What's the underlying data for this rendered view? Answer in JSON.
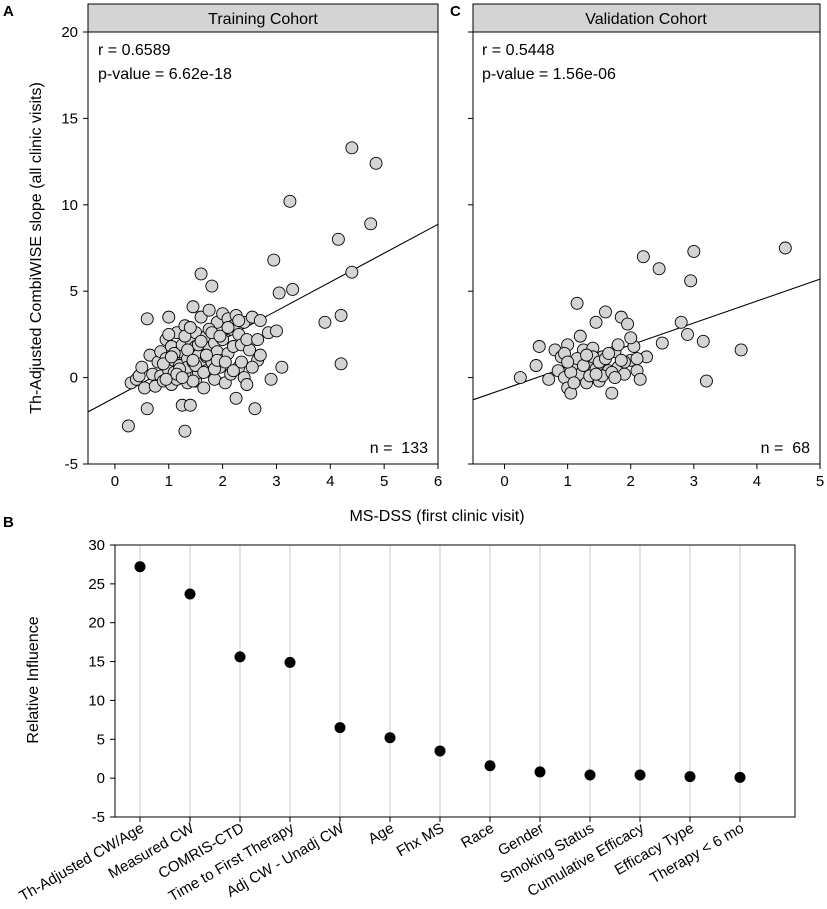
{
  "figure": {
    "panel_labels": {
      "a": "A",
      "c": "C",
      "b": "B"
    }
  },
  "chart_data": [
    {
      "id": "A",
      "type": "scatter",
      "title": "Training Cohort",
      "xlabel": "MS-DSS (first clinic visit)",
      "ylabel": "Th-Adjusted CombiWISE slope (all clinic visits)",
      "xlim": [
        -0.5,
        6
      ],
      "ylim": [
        -5,
        20
      ],
      "xticks": [
        0,
        1,
        2,
        3,
        4,
        5,
        6
      ],
      "yticks": [
        -5,
        0,
        5,
        10,
        15,
        20
      ],
      "stats": {
        "r": "r = 0.6589",
        "p": "p-value = 6.62e-18",
        "n": "n =  133"
      },
      "fit": {
        "intercept": -1.15,
        "slope": 1.67
      },
      "points": [
        [
          0.25,
          -2.8
        ],
        [
          0.3,
          -0.3
        ],
        [
          0.4,
          -0.1
        ],
        [
          0.45,
          0.1
        ],
        [
          0.5,
          0.6
        ],
        [
          0.55,
          -0.6
        ],
        [
          0.6,
          3.4
        ],
        [
          0.6,
          -1.8
        ],
        [
          0.65,
          1.3
        ],
        [
          0.7,
          0.2
        ],
        [
          0.75,
          -0.5
        ],
        [
          0.8,
          0.9
        ],
        [
          0.85,
          1.5
        ],
        [
          0.85,
          0.1
        ],
        [
          0.9,
          -0.2
        ],
        [
          0.95,
          1.1
        ],
        [
          0.95,
          2.2
        ],
        [
          1.0,
          0.4
        ],
        [
          1.0,
          3.5
        ],
        [
          1.05,
          1.8
        ],
        [
          1.05,
          -0.4
        ],
        [
          1.1,
          1.0
        ],
        [
          1.1,
          0.3
        ],
        [
          1.15,
          2.6
        ],
        [
          1.15,
          -0.1
        ],
        [
          1.2,
          1.5
        ],
        [
          1.2,
          0.7
        ],
        [
          1.25,
          -1.6
        ],
        [
          1.25,
          1.9
        ],
        [
          1.3,
          0.2
        ],
        [
          1.3,
          3.0
        ],
        [
          1.3,
          -3.1
        ],
        [
          1.35,
          1.1
        ],
        [
          1.35,
          -0.3
        ],
        [
          1.35,
          0.6
        ],
        [
          1.4,
          2.2
        ],
        [
          1.4,
          -1.6
        ],
        [
          1.4,
          1.6
        ],
        [
          1.45,
          4.1
        ],
        [
          1.45,
          0.9
        ],
        [
          1.5,
          1.8
        ],
        [
          1.5,
          -0.2
        ],
        [
          1.5,
          2.6
        ],
        [
          1.55,
          0.3
        ],
        [
          1.55,
          1.3
        ],
        [
          1.6,
          6.0
        ],
        [
          1.6,
          3.5
        ],
        [
          1.6,
          0.8
        ],
        [
          1.65,
          1.9
        ],
        [
          1.65,
          -0.6
        ],
        [
          1.7,
          2.4
        ],
        [
          1.7,
          1.2
        ],
        [
          1.7,
          0.4
        ],
        [
          1.75,
          3.9
        ],
        [
          1.75,
          1.7
        ],
        [
          1.8,
          5.3
        ],
        [
          1.8,
          0.9
        ],
        [
          1.85,
          2.0
        ],
        [
          1.85,
          -0.1
        ],
        [
          1.9,
          3.2
        ],
        [
          1.9,
          1.5
        ],
        [
          1.95,
          0.6
        ],
        [
          2.0,
          3.7
        ],
        [
          2.0,
          2.2
        ],
        [
          2.0,
          1.0
        ],
        [
          2.05,
          -0.3
        ],
        [
          2.1,
          3.4
        ],
        [
          2.1,
          1.4
        ],
        [
          2.15,
          2.8
        ],
        [
          2.15,
          0.2
        ],
        [
          2.2,
          3.0
        ],
        [
          2.2,
          1.8
        ],
        [
          2.25,
          -1.2
        ],
        [
          2.25,
          3.6
        ],
        [
          2.3,
          0.6
        ],
        [
          2.3,
          2.5
        ],
        [
          2.35,
          1.9
        ],
        [
          2.4,
          3.2
        ],
        [
          2.4,
          0.0
        ],
        [
          2.45,
          -0.4
        ],
        [
          2.5,
          1.6
        ],
        [
          2.55,
          3.5
        ],
        [
          2.6,
          -1.8
        ],
        [
          2.65,
          1.0
        ],
        [
          2.7,
          3.3
        ],
        [
          2.85,
          2.6
        ],
        [
          2.9,
          -0.1
        ],
        [
          2.95,
          6.8
        ],
        [
          3.0,
          2.7
        ],
        [
          3.05,
          4.9
        ],
        [
          3.1,
          0.6
        ],
        [
          3.25,
          10.2
        ],
        [
          3.3,
          5.1
        ],
        [
          3.9,
          3.2
        ],
        [
          4.15,
          8.0
        ],
        [
          4.2,
          3.6
        ],
        [
          4.2,
          0.8
        ],
        [
          4.4,
          13.3
        ],
        [
          4.4,
          6.1
        ],
        [
          4.75,
          8.9
        ],
        [
          4.85,
          12.4
        ],
        [
          1.0,
          2.5
        ],
        [
          1.1,
          1.4
        ],
        [
          1.2,
          0.5
        ],
        [
          1.3,
          2.4
        ],
        [
          1.4,
          2.9
        ],
        [
          1.45,
          -0.2
        ],
        [
          1.5,
          0.7
        ],
        [
          1.55,
          1.9
        ],
        [
          1.6,
          2.1
        ],
        [
          1.65,
          0.3
        ],
        [
          1.7,
          1.3
        ],
        [
          1.75,
          2.8
        ],
        [
          1.8,
          2.6
        ],
        [
          1.85,
          0.5
        ],
        [
          1.9,
          1.0
        ],
        [
          1.95,
          2.4
        ],
        [
          2.05,
          0.9
        ],
        [
          2.1,
          2.9
        ],
        [
          2.2,
          0.4
        ],
        [
          2.3,
          3.3
        ],
        [
          2.35,
          0.9
        ],
        [
          2.45,
          2.2
        ],
        [
          2.55,
          0.6
        ],
        [
          2.65,
          2.2
        ],
        [
          2.7,
          1.3
        ],
        [
          0.9,
          0.8
        ],
        [
          0.95,
          -0.1
        ],
        [
          1.05,
          1.2
        ],
        [
          1.15,
          0.2
        ],
        [
          1.25,
          0.0
        ],
        [
          1.35,
          1.6
        ],
        [
          1.45,
          1.0
        ]
      ]
    },
    {
      "id": "C",
      "type": "scatter",
      "title": "Validation Cohort",
      "xlabel": "",
      "ylabel": "",
      "xlim": [
        -0.5,
        5
      ],
      "ylim": [
        -5,
        20
      ],
      "xticks": [
        0,
        1,
        2,
        3,
        4,
        5
      ],
      "yticks": [
        -5,
        0,
        5,
        10,
        15,
        20
      ],
      "stats": {
        "r": "r = 0.5448",
        "p": "p-value = 1.56e-06",
        "n": "n =  68"
      },
      "fit": {
        "intercept": -0.65,
        "slope": 1.27
      },
      "points": [
        [
          0.25,
          0.0
        ],
        [
          0.5,
          0.7
        ],
        [
          0.55,
          1.8
        ],
        [
          0.7,
          -0.1
        ],
        [
          0.8,
          1.6
        ],
        [
          0.85,
          0.4
        ],
        [
          0.9,
          1.2
        ],
        [
          0.95,
          0.0
        ],
        [
          1.0,
          -0.6
        ],
        [
          1.0,
          1.9
        ],
        [
          1.05,
          -0.9
        ],
        [
          1.1,
          0.8
        ],
        [
          1.15,
          4.3
        ],
        [
          1.2,
          2.4
        ],
        [
          1.2,
          0.2
        ],
        [
          1.25,
          1.6
        ],
        [
          1.3,
          -0.3
        ],
        [
          1.35,
          0.9
        ],
        [
          1.4,
          1.7
        ],
        [
          1.45,
          3.2
        ],
        [
          1.45,
          0.5
        ],
        [
          1.5,
          -0.2
        ],
        [
          1.55,
          1.2
        ],
        [
          1.6,
          3.8
        ],
        [
          1.65,
          0.4
        ],
        [
          1.7,
          -0.9
        ],
        [
          1.75,
          1.5
        ],
        [
          1.8,
          0.6
        ],
        [
          1.85,
          3.5
        ],
        [
          1.9,
          0.2
        ],
        [
          1.95,
          3.1
        ],
        [
          2.0,
          1.0
        ],
        [
          2.05,
          1.8
        ],
        [
          2.1,
          0.4
        ],
        [
          2.15,
          -0.1
        ],
        [
          2.2,
          7.0
        ],
        [
          2.25,
          1.2
        ],
        [
          2.45,
          6.3
        ],
        [
          2.5,
          2.0
        ],
        [
          2.8,
          3.2
        ],
        [
          2.9,
          2.5
        ],
        [
          2.95,
          5.6
        ],
        [
          3.0,
          7.3
        ],
        [
          3.15,
          2.1
        ],
        [
          3.2,
          -0.2
        ],
        [
          3.75,
          1.6
        ],
        [
          4.45,
          7.5
        ],
        [
          0.95,
          1.4
        ],
        [
          1.05,
          0.3
        ],
        [
          1.15,
          1.1
        ],
        [
          1.25,
          0.7
        ],
        [
          1.35,
          0.1
        ],
        [
          1.4,
          1.2
        ],
        [
          1.5,
          0.9
        ],
        [
          1.55,
          0.1
        ],
        [
          1.6,
          1.1
        ],
        [
          1.7,
          0.3
        ],
        [
          1.8,
          1.9
        ],
        [
          1.9,
          0.9
        ],
        [
          2.0,
          2.3
        ],
        [
          1.1,
          -0.3
        ],
        [
          1.3,
          1.3
        ],
        [
          1.45,
          0.2
        ],
        [
          1.65,
          1.4
        ],
        [
          1.75,
          0.0
        ],
        [
          1.85,
          1.0
        ],
        [
          2.1,
          1.1
        ],
        [
          1.0,
          0.9
        ]
      ]
    },
    {
      "id": "B",
      "type": "dot",
      "ylabel": "Relative Influence",
      "ylim": [
        -5,
        30
      ],
      "yticks": [
        -5,
        0,
        5,
        10,
        15,
        20,
        25,
        30
      ],
      "categories": [
        "Th-Adjusted CW/Age",
        "Measured CW",
        "COMRIS-CTD",
        "Time to First Therapy",
        "Adj CW - Unadj CW",
        "Age",
        "Fhx MS",
        "Race",
        "Gender",
        "Smoking Status",
        "Cumulative Efficacy",
        "Efficacy Type",
        "Therapy < 6 mo"
      ],
      "values": [
        27.2,
        23.7,
        15.6,
        14.9,
        6.5,
        5.2,
        3.5,
        1.6,
        0.8,
        0.4,
        0.4,
        0.2,
        0.1
      ]
    }
  ]
}
